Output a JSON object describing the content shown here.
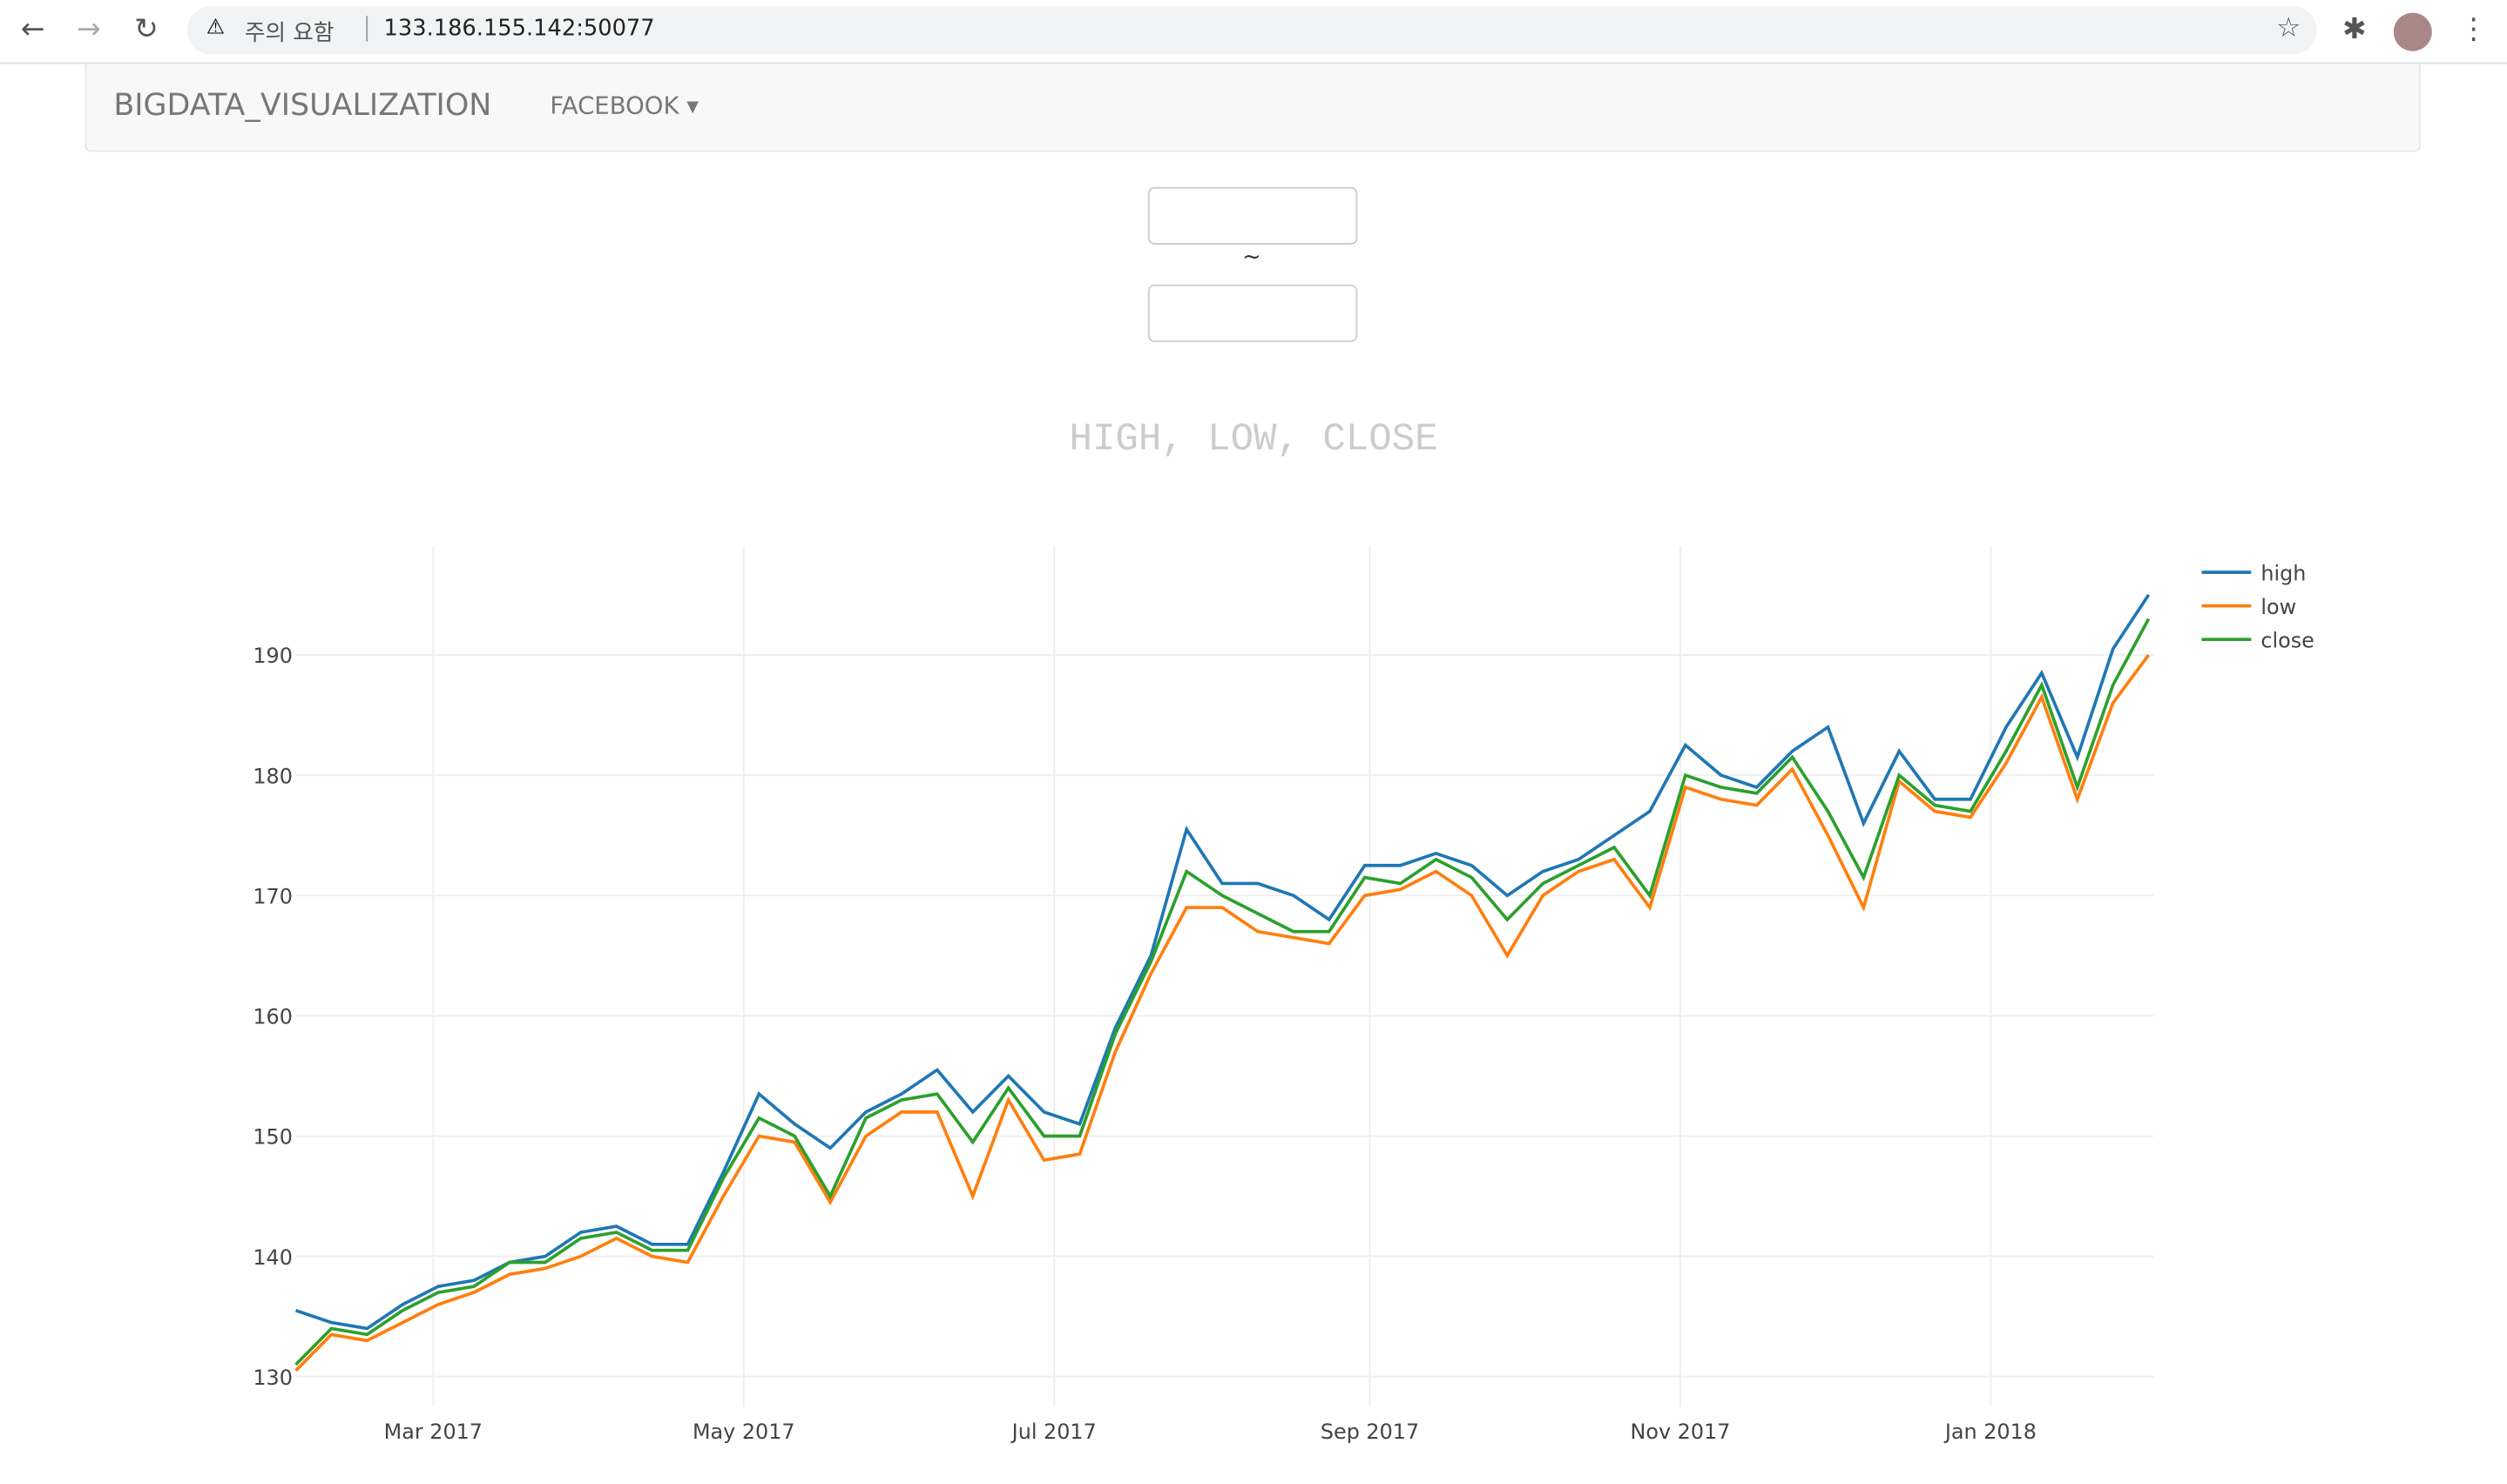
{
  "browser": {
    "warning": "주의 요함",
    "url": "133.186.155.142:50077"
  },
  "navbar": {
    "brand": "BIGDATA_VISUALIZATION",
    "menu": "FACEBOOK"
  },
  "form": {
    "separator": "~"
  },
  "chart_data": {
    "type": "line",
    "title": "HIGH, LOW, CLOSE",
    "x": [
      "2017-02-02",
      "2017-02-09",
      "2017-02-16",
      "2017-02-23",
      "2017-03-02",
      "2017-03-09",
      "2017-03-16",
      "2017-03-23",
      "2017-03-30",
      "2017-04-06",
      "2017-04-13",
      "2017-04-20",
      "2017-04-27",
      "2017-05-04",
      "2017-05-11",
      "2017-05-18",
      "2017-05-25",
      "2017-06-01",
      "2017-06-08",
      "2017-06-15",
      "2017-06-22",
      "2017-06-29",
      "2017-07-06",
      "2017-07-13",
      "2017-07-20",
      "2017-07-27",
      "2017-08-03",
      "2017-08-10",
      "2017-08-17",
      "2017-08-24",
      "2017-08-31",
      "2017-09-07",
      "2017-09-14",
      "2017-09-21",
      "2017-09-28",
      "2017-10-05",
      "2017-10-12",
      "2017-10-19",
      "2017-10-26",
      "2017-11-02",
      "2017-11-09",
      "2017-11-16",
      "2017-11-23",
      "2017-11-30",
      "2017-12-07",
      "2017-12-14",
      "2017-12-21",
      "2017-12-28",
      "2018-01-04",
      "2018-01-11",
      "2018-01-18",
      "2018-01-25",
      "2018-02-01"
    ],
    "series": [
      {
        "name": "high",
        "color": "#1f77b4",
        "values": [
          135.5,
          134.5,
          134,
          136,
          137.5,
          138,
          139.5,
          140,
          142,
          142.5,
          141,
          141,
          147,
          153.5,
          151,
          149,
          152,
          153.5,
          155.5,
          152,
          155,
          152,
          151,
          159,
          165,
          175.5,
          171,
          171,
          170,
          168,
          172.5,
          172.5,
          173.5,
          172.5,
          170,
          172,
          173,
          175,
          177,
          182.5,
          180,
          179,
          182,
          184,
          176,
          182,
          178,
          178,
          184,
          188.5,
          181.5,
          190.5,
          195
        ]
      },
      {
        "name": "low",
        "color": "#ff7f0e",
        "values": [
          130.5,
          133.5,
          133,
          134.5,
          136,
          137,
          138.5,
          139,
          140,
          141.5,
          140,
          139.5,
          145,
          150,
          149.5,
          144.5,
          150,
          152,
          152,
          145,
          153,
          148,
          148.5,
          157,
          163.5,
          169,
          169,
          167,
          166.5,
          166,
          170,
          170.5,
          172,
          170,
          165,
          170,
          172,
          173,
          169,
          179,
          178,
          177.5,
          180.5,
          175,
          169,
          179.5,
          177,
          176.5,
          181,
          186.5,
          178,
          186,
          190
        ]
      },
      {
        "name": "close",
        "color": "#2ca02c",
        "values": [
          131,
          134,
          133.5,
          135.5,
          137,
          137.5,
          139.5,
          139.5,
          141.5,
          142,
          140.5,
          140.5,
          146.5,
          151.5,
          150,
          145,
          151.5,
          153,
          153.5,
          149.5,
          154,
          150,
          150,
          158.5,
          164.5,
          172,
          170,
          168.5,
          167,
          167,
          171.5,
          171,
          173,
          171.5,
          168,
          171,
          172.5,
          174,
          170,
          180,
          179,
          178.5,
          181.5,
          177,
          171.5,
          180,
          177.5,
          177,
          182,
          187.5,
          179,
          187.5,
          193
        ]
      }
    ],
    "xlim": [
      "2017-02-02",
      "2018-02-02"
    ],
    "xticks": [
      {
        "value": "2017-03-01",
        "label": "Mar 2017"
      },
      {
        "value": "2017-05-01",
        "label": "May 2017"
      },
      {
        "value": "2017-07-01",
        "label": "Jul 2017"
      },
      {
        "value": "2017-09-01",
        "label": "Sep 2017"
      },
      {
        "value": "2017-11-01",
        "label": "Nov 2017"
      },
      {
        "value": "2018-01-01",
        "label": "Jan 2018"
      }
    ],
    "ylim": [
      127.5,
      199
    ],
    "yticks": [
      130,
      140,
      150,
      160,
      170,
      180,
      190
    ],
    "grid": true,
    "legend": "top-right"
  }
}
